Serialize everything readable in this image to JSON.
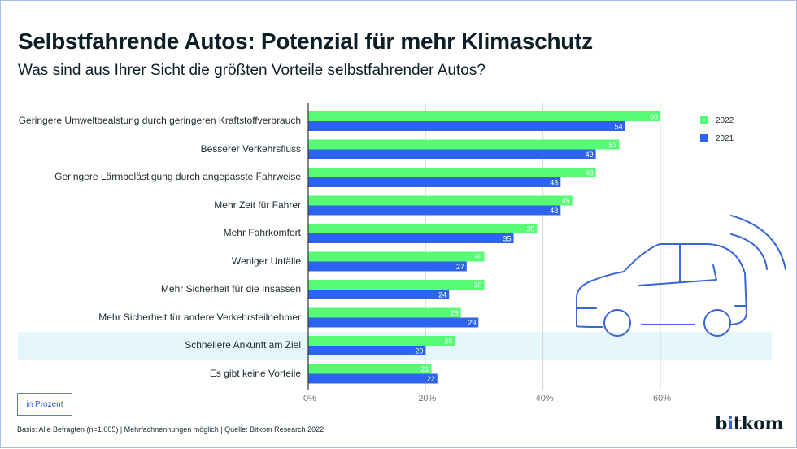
{
  "header": {
    "title": "Selbstfahrende Autos: Potenzial für mehr Klimaschutz",
    "subtitle": "Was sind aus Ihrer Sicht die größten Vorteile selbstfahrender Autos?"
  },
  "unit_label": "in Prozent",
  "footnote": "Basis: Alle Befragten (n=1.005) | Mehrfachnennungen möglich | Quelle: Bitkom Research 2022",
  "logo": {
    "prefix": "b",
    "dot_letter": "i",
    "suffix": "tkom"
  },
  "colors": {
    "series_2022": "#57fb74",
    "series_2021": "#2d63ee",
    "highlight": "#e6f6fd",
    "icon": "#3a66d8"
  },
  "icons": {
    "illustration": "car-with-signal-waves-icon"
  },
  "chart_data": {
    "type": "bar",
    "orientation": "horizontal",
    "title": "Selbstfahrende Autos: Potenzial für mehr Klimaschutz",
    "subtitle": "Was sind aus Ihrer Sicht die größten Vorteile selbstfahrender Autos?",
    "xlabel": "",
    "ylabel": "",
    "unit": "in Prozent",
    "xlim": [
      0,
      60
    ],
    "xticks": [
      0,
      20,
      40,
      60
    ],
    "xtick_labels": [
      "0%",
      "20%",
      "40%",
      "60%"
    ],
    "grid": true,
    "legend_position": "top-right",
    "highlighted_category": "Schnellere Ankunft am Ziel",
    "categories": [
      "Geringere Umweltbealstung durch geringeren Kraftstoffverbrauch",
      "Besserer Verkehrsfluss",
      "Geringere Lärmbelästigung durch angepasste Fahrweise",
      "Mehr Zeit für Fahrer",
      "Mehr Fahrkomfort",
      "Weniger Unfälle",
      "Mehr Sicherheit für die Insassen",
      "Mehr Sicherheit für andere Verkehrsteilnehmer",
      "Schnellere Ankunft am Ziel",
      "Es gibt keine Vorteile"
    ],
    "series": [
      {
        "name": "2022",
        "values": [
          60,
          53,
          49,
          45,
          39,
          30,
          30,
          26,
          25,
          21
        ]
      },
      {
        "name": "2021",
        "values": [
          54,
          49,
          43,
          43,
          35,
          27,
          24,
          29,
          20,
          22
        ]
      }
    ]
  }
}
